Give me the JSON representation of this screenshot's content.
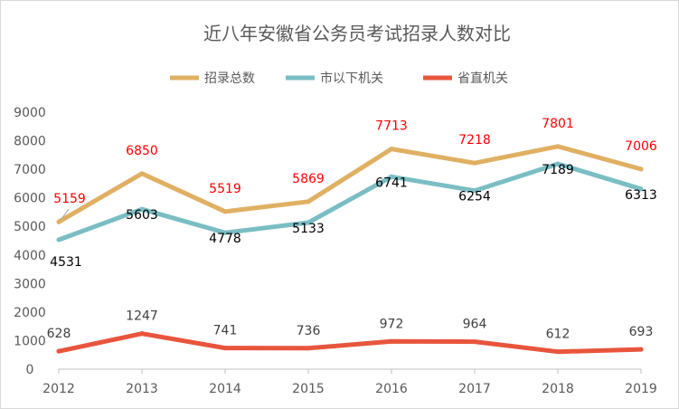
{
  "chart_data": {
    "type": "line",
    "title": "近八年安徽省公务员考试招录人数对比",
    "xlabel": "",
    "ylabel": "",
    "categories": [
      "2012",
      "2013",
      "2014",
      "2015",
      "2016",
      "2017",
      "2018",
      "2019"
    ],
    "ylim": [
      0,
      9000
    ],
    "yticks": [
      "0",
      "1000",
      "2000",
      "3000",
      "4000",
      "5000",
      "6000",
      "7000",
      "8000",
      "9000"
    ],
    "grid": false,
    "legend_position": "top",
    "series": [
      {
        "name": "招录总数",
        "color": "#E0B062",
        "label_color": "#FF0000",
        "values": [
          5159,
          6850,
          5519,
          5869,
          7713,
          7218,
          7801,
          7006
        ]
      },
      {
        "name": "市以下机关",
        "color": "#7ABEC4",
        "label_color": "#000000",
        "values": [
          4531,
          5603,
          4778,
          5133,
          6741,
          6254,
          7189,
          6313
        ]
      },
      {
        "name": "省直机关",
        "color": "#E8553C",
        "label_color": "#404040",
        "values": [
          628,
          1247,
          741,
          736,
          972,
          964,
          612,
          693
        ]
      }
    ]
  }
}
